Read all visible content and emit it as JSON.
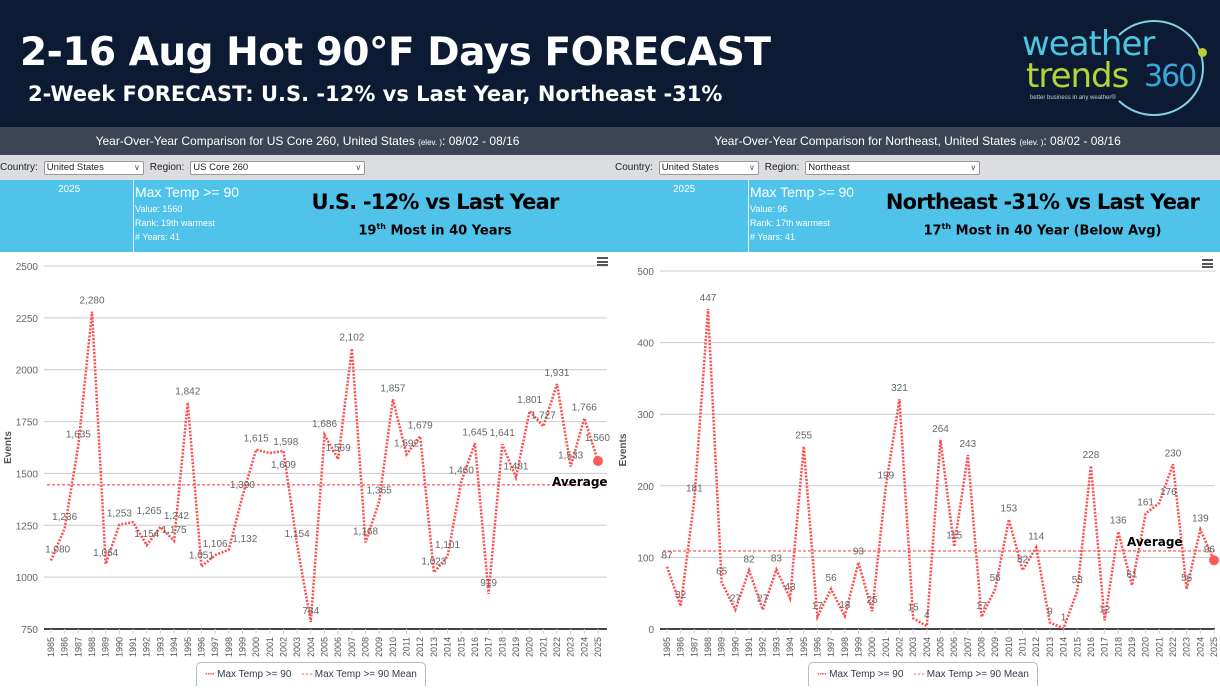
{
  "header": {
    "title": "2-16 Aug Hot 90°F Days FORECAST",
    "subtitle": "2-Week FORECAST:  U.S. -12% vs Last Year, Northeast -31%"
  },
  "logo": {
    "line1": "weather",
    "line2": "trends",
    "number": "360",
    "tagline": "better business in any weather®",
    "colors": {
      "weather": "#4cc6e0",
      "trends": "#b5d334",
      "360": "#3aa6d6"
    }
  },
  "panels": [
    {
      "title": "Year-Over-Year Comparison for US Core 260, United States",
      "elev": "(elev. )",
      "range": ": 08/02 - 08/16",
      "country_label": "Country:",
      "country": "United States",
      "region_label": "Region:",
      "region": "US Core 260",
      "year": "2025",
      "metric": "Max Temp >= 90",
      "value": "Value: 1560",
      "rank": "Rank: 19th warmest",
      "years": "# Years: 41",
      "headline": "U.S. -12% vs Last Year",
      "sub_pre": "19",
      "sub_sup": "th",
      "sub_post": " Most in 40 Years",
      "average_label": "Average"
    },
    {
      "title": "Year-Over-Year Comparison for Northeast, United States",
      "elev": "(elev. )",
      "range": ": 08/02 - 08/16",
      "country_label": "Country:",
      "country": "United States",
      "region_label": "Region:",
      "region": "Northeast",
      "year": "2025",
      "metric": "Max Temp >= 90",
      "value": "Value: 96",
      "rank": "Rank: 17th warmest",
      "years": "# Years: 41",
      "headline": "Northeast -31% vs Last Year",
      "sub_pre": "17",
      "sub_sup": "th",
      "sub_post": " Most in 40 Year (Below Avg)",
      "average_label": "Average"
    }
  ],
  "chart_data": [
    {
      "type": "line",
      "ylabel": "Events",
      "ylim": [
        750,
        2500
      ],
      "yticks": [
        750,
        1000,
        1250,
        1500,
        1750,
        2000,
        2250,
        2500
      ],
      "grid": true,
      "legend": "bottom",
      "color": "#ff4d4d",
      "x": [
        1985,
        1986,
        1987,
        1988,
        1989,
        1990,
        1991,
        1992,
        1993,
        1994,
        1995,
        1996,
        1997,
        1998,
        1999,
        2000,
        2001,
        2002,
        2003,
        2004,
        2005,
        2006,
        2007,
        2008,
        2009,
        2010,
        2011,
        2012,
        2013,
        2014,
        2015,
        2016,
        2017,
        2018,
        2019,
        2020,
        2021,
        2022,
        2023,
        2024,
        2025
      ],
      "series": [
        {
          "name": "Max Temp >= 90",
          "values": [
            1080,
            1236,
            1635,
            2280,
            1064,
            1253,
            1265,
            1154,
            1242,
            1175,
            1842,
            1051,
            1106,
            1132,
            1390,
            1615,
            1598,
            1609,
            1154,
            784,
            1686,
            1569,
            2102,
            1168,
            1365,
            1857,
            1592,
            1679,
            1023,
            1101,
            1460,
            1645,
            919,
            1641,
            1481,
            1801,
            1727,
            1931,
            1533,
            1766,
            1560
          ]
        },
        {
          "name": "Max Temp >= 90 Mean",
          "value": 1445
        }
      ]
    },
    {
      "type": "line",
      "ylabel": "Events",
      "ylim": [
        0,
        500
      ],
      "yticks": [
        0,
        100,
        200,
        300,
        400,
        500
      ],
      "grid": true,
      "legend": "bottom",
      "color": "#ff4d4d",
      "x": [
        1985,
        1986,
        1987,
        1988,
        1989,
        1990,
        1991,
        1992,
        1993,
        1994,
        1995,
        1996,
        1997,
        1998,
        1999,
        2000,
        2001,
        2002,
        2003,
        2004,
        2005,
        2006,
        2007,
        2008,
        2009,
        2010,
        2011,
        2012,
        2013,
        2014,
        2015,
        2016,
        2017,
        2018,
        2019,
        2020,
        2021,
        2022,
        2023,
        2024,
        2025
      ],
      "series": [
        {
          "name": "Max Temp >= 90",
          "values": [
            87,
            32,
            181,
            447,
            65,
            27,
            82,
            27,
            83,
            43,
            255,
            17,
            56,
            18,
            93,
            25,
            199,
            321,
            15,
            4,
            264,
            115,
            243,
            17,
            56,
            153,
            82,
            114,
            9,
            1,
            53,
            228,
            12,
            136,
            61,
            161,
            176,
            230,
            56,
            139,
            96
          ]
        },
        {
          "name": "Max Temp >= 90 Mean",
          "value": 109
        }
      ]
    }
  ]
}
